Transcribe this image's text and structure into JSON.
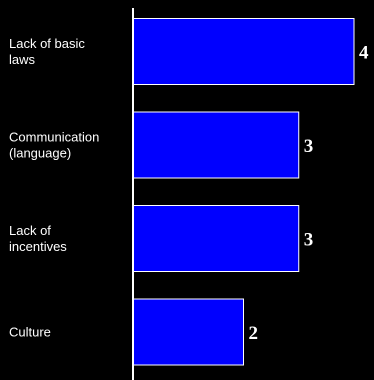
{
  "chart_data": {
    "type": "bar",
    "orientation": "horizontal",
    "categories": [
      [
        "Lack of basic",
        "laws"
      ],
      [
        "Communication",
        "(language)"
      ],
      [
        "Lack of",
        "incentives"
      ],
      [
        "Culture"
      ]
    ],
    "values": [
      4,
      3,
      3,
      2
    ],
    "data_labels": [
      "4",
      "3",
      "3",
      "2"
    ],
    "title": "",
    "xlabel": "",
    "ylabel": "",
    "xlim": [
      0,
      4
    ],
    "grid": false,
    "legend": "none",
    "colors": {
      "background": "#000000",
      "bar_fill": "#0000ff",
      "bar_stroke": "#ffffff",
      "axis": "#ffffff",
      "text": "#ffffff"
    }
  }
}
